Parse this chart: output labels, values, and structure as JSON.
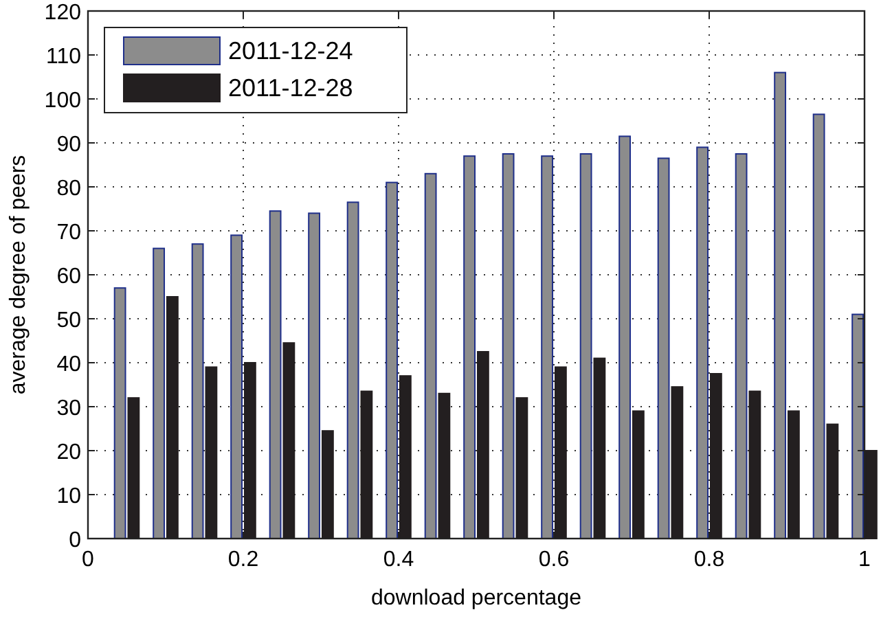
{
  "chart_data": {
    "type": "bar",
    "xlabel": "download percentage",
    "ylabel": "average degree of peers",
    "x": [
      0.05,
      0.1,
      0.15,
      0.2,
      0.25,
      0.3,
      0.35,
      0.4,
      0.45,
      0.5,
      0.55,
      0.6,
      0.65,
      0.7,
      0.75,
      0.8,
      0.85,
      0.9,
      0.95,
      1.0
    ],
    "series": [
      {
        "name": "2011-12-24",
        "color": "#8c8c8c",
        "values": [
          57,
          66,
          67,
          69,
          74.5,
          74,
          76.5,
          81,
          83,
          87,
          87.5,
          87,
          87.5,
          91.5,
          86.5,
          89,
          87.5,
          106,
          96.5,
          51
        ]
      },
      {
        "name": "2011-12-28",
        "color": "#231f20",
        "values": [
          32,
          55,
          39,
          40,
          44.5,
          24.5,
          33.5,
          37,
          33,
          42.5,
          32,
          39,
          41,
          29,
          34.5,
          37.5,
          33.5,
          29,
          26,
          20
        ]
      }
    ],
    "xlim": [
      0,
      1
    ],
    "xticks": [
      0,
      0.2,
      0.4,
      0.6,
      0.8,
      1
    ],
    "ylim": [
      0,
      120
    ],
    "yticks": [
      0,
      10,
      20,
      30,
      40,
      50,
      60,
      70,
      80,
      90,
      100,
      110,
      120
    ],
    "grid": true,
    "legend": "top left"
  }
}
